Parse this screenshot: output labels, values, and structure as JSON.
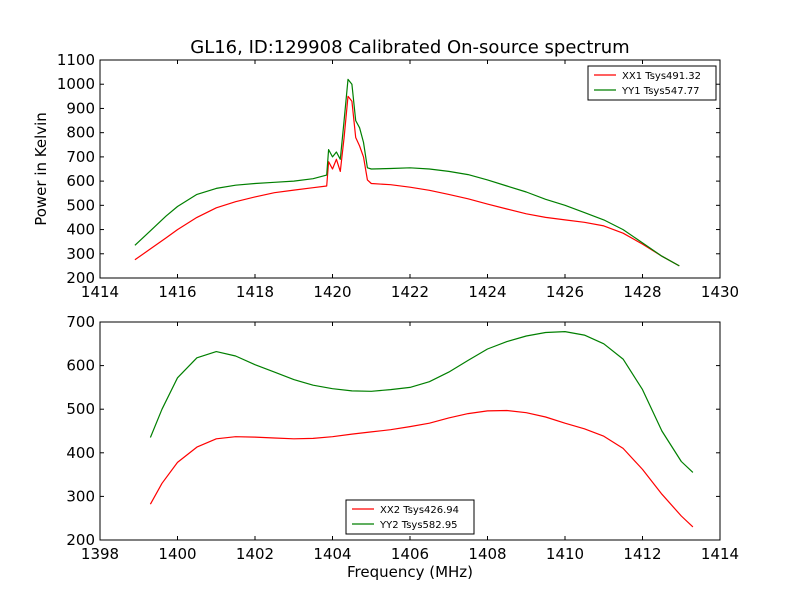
{
  "figure": {
    "title": "GL16, ID:129908 Calibrated On-source spectrum"
  },
  "chart_data": [
    {
      "type": "line",
      "title": "GL16, ID:129908 Calibrated On-source spectrum",
      "xlabel": "",
      "ylabel": "Power in Kelvin",
      "xlim": [
        1414,
        1430
      ],
      "ylim": [
        200,
        1100
      ],
      "xticks": [
        "1414",
        "1416",
        "1418",
        "1420",
        "1422",
        "1424",
        "1426",
        "1428",
        "1430"
      ],
      "yticks": [
        "200",
        "300",
        "400",
        "500",
        "600",
        "700",
        "800",
        "900",
        "1000",
        "1100"
      ],
      "grid": false,
      "legend_position": "top-right",
      "series": [
        {
          "name": "XX1 Tsys491.32",
          "color": "#ff0000",
          "x": [
            1414.9,
            1415.3,
            1415.7,
            1416.0,
            1416.5,
            1417.0,
            1417.5,
            1418.0,
            1418.5,
            1419.0,
            1419.5,
            1419.85,
            1419.9,
            1420.0,
            1420.1,
            1420.2,
            1420.3,
            1420.4,
            1420.5,
            1420.6,
            1420.7,
            1420.8,
            1420.9,
            1421.0,
            1421.5,
            1422.0,
            1422.5,
            1423.0,
            1423.5,
            1424.0,
            1424.5,
            1425.0,
            1425.5,
            1426.0,
            1426.5,
            1427.0,
            1427.5,
            1428.0,
            1428.5,
            1428.95
          ],
          "y": [
            275,
            320,
            365,
            400,
            450,
            490,
            515,
            535,
            552,
            563,
            573,
            580,
            680,
            650,
            690,
            640,
            780,
            950,
            930,
            780,
            745,
            700,
            605,
            590,
            585,
            575,
            562,
            545,
            527,
            505,
            485,
            465,
            450,
            440,
            430,
            415,
            385,
            340,
            290,
            250
          ]
        },
        {
          "name": "YY1 Tsys547.77",
          "color": "#007f00",
          "x": [
            1414.9,
            1415.3,
            1415.7,
            1416.0,
            1416.5,
            1417.0,
            1417.5,
            1418.0,
            1418.5,
            1419.0,
            1419.5,
            1419.85,
            1419.9,
            1420.0,
            1420.1,
            1420.2,
            1420.3,
            1420.4,
            1420.5,
            1420.6,
            1420.7,
            1420.8,
            1420.9,
            1421.0,
            1421.5,
            1422.0,
            1422.5,
            1423.0,
            1423.5,
            1424.0,
            1424.5,
            1425.0,
            1425.5,
            1426.0,
            1426.5,
            1427.0,
            1427.5,
            1428.0,
            1428.5,
            1428.95
          ],
          "y": [
            335,
            395,
            455,
            495,
            545,
            570,
            583,
            590,
            595,
            600,
            610,
            625,
            730,
            700,
            720,
            690,
            850,
            1020,
            1000,
            850,
            820,
            760,
            655,
            650,
            652,
            655,
            650,
            640,
            627,
            605,
            580,
            555,
            525,
            500,
            470,
            440,
            400,
            345,
            290,
            250
          ]
        }
      ]
    },
    {
      "type": "line",
      "title": "",
      "xlabel": "Frequency (MHz)",
      "ylabel": "",
      "xlim": [
        1398,
        1414
      ],
      "ylim": [
        200,
        700
      ],
      "xticks": [
        "1398",
        "1400",
        "1402",
        "1404",
        "1406",
        "1408",
        "1410",
        "1412",
        "1414"
      ],
      "yticks": [
        "200",
        "300",
        "400",
        "500",
        "600",
        "700"
      ],
      "grid": false,
      "legend_position": "bottom-center",
      "series": [
        {
          "name": "XX2 Tsys426.94",
          "color": "#ff0000",
          "x": [
            1399.3,
            1399.6,
            1400.0,
            1400.5,
            1401.0,
            1401.5,
            1402.0,
            1402.5,
            1403.0,
            1403.5,
            1404.0,
            1404.5,
            1405.0,
            1405.5,
            1406.0,
            1406.5,
            1407.0,
            1407.5,
            1408.0,
            1408.5,
            1409.0,
            1409.5,
            1410.0,
            1410.5,
            1411.0,
            1411.5,
            1412.0,
            1412.5,
            1413.0,
            1413.3
          ],
          "y": [
            282,
            330,
            378,
            413,
            432,
            437,
            436,
            434,
            432,
            433,
            437,
            443,
            448,
            453,
            460,
            468,
            480,
            490,
            496,
            497,
            492,
            482,
            468,
            455,
            438,
            410,
            362,
            305,
            255,
            230
          ]
        },
        {
          "name": "YY2 Tsys582.95",
          "color": "#007f00",
          "x": [
            1399.3,
            1399.6,
            1400.0,
            1400.5,
            1401.0,
            1401.5,
            1402.0,
            1402.5,
            1403.0,
            1403.5,
            1404.0,
            1404.5,
            1405.0,
            1405.5,
            1406.0,
            1406.5,
            1407.0,
            1407.5,
            1408.0,
            1408.5,
            1409.0,
            1409.5,
            1410.0,
            1410.5,
            1411.0,
            1411.5,
            1412.0,
            1412.5,
            1413.0,
            1413.3
          ],
          "y": [
            435,
            500,
            572,
            618,
            632,
            622,
            602,
            585,
            568,
            555,
            547,
            542,
            541,
            545,
            550,
            563,
            585,
            612,
            638,
            655,
            668,
            676,
            678,
            670,
            650,
            615,
            545,
            450,
            380,
            355
          ]
        }
      ]
    }
  ]
}
